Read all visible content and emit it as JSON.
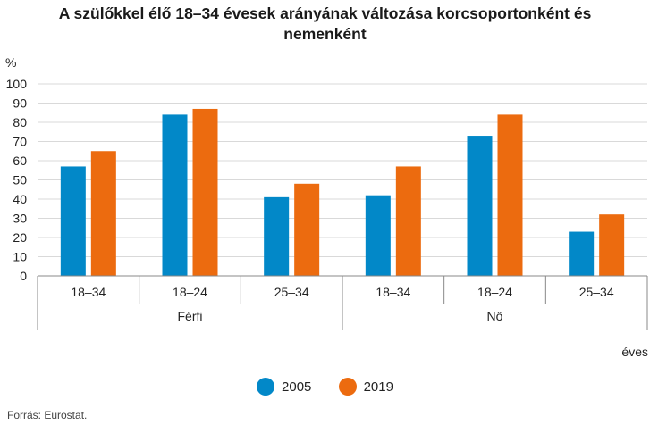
{
  "colors": {
    "series_2005": "#0288c8",
    "series_2019": "#ec6b0f",
    "grid": "#d9d9d9",
    "axis": "#888888"
  },
  "chart_data": {
    "type": "bar",
    "title_line1": "A szülőkkel élő 18–34 évesek arányának változása korcsoportonként és",
    "title_line2": "nemenként",
    "ylabel": "%",
    "x_suffix": "éves",
    "ylim": [
      0,
      100
    ],
    "yticks": [
      0,
      10,
      20,
      30,
      40,
      50,
      60,
      70,
      80,
      90,
      100
    ],
    "grid": true,
    "categories": [
      "18–34",
      "18–24",
      "25–34",
      "18–34",
      "18–24",
      "25–34"
    ],
    "groups": [
      {
        "label": "Férfi",
        "span": [
          0,
          2
        ]
      },
      {
        "label": "Nő",
        "span": [
          3,
          5
        ]
      }
    ],
    "series": [
      {
        "name": "2005",
        "values": [
          57,
          84,
          41,
          42,
          73,
          23
        ]
      },
      {
        "name": "2019",
        "values": [
          65,
          87,
          48,
          57,
          84,
          32
        ]
      }
    ],
    "legend": [
      "2005",
      "2019"
    ],
    "source": "Forrás: Eurostat."
  }
}
